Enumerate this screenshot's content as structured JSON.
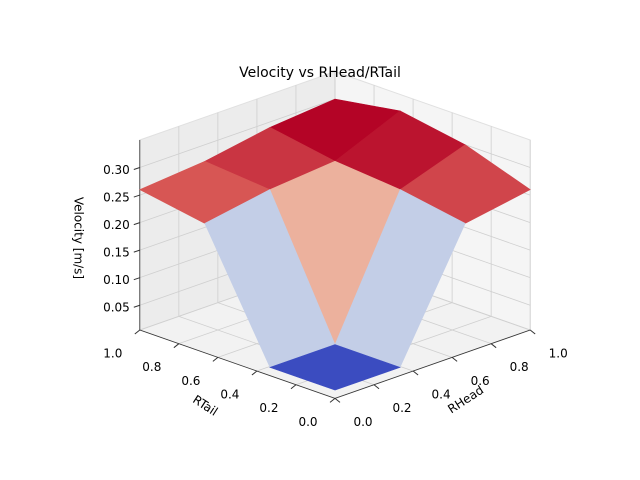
{
  "chart_data": {
    "type": "surface",
    "title": "Velocity vs RHead/RTail",
    "xlabel": "RHead",
    "ylabel": "RTail",
    "zlabel": "Velocity [m/s]",
    "x": [
      0,
      0.333,
      0.667,
      1
    ],
    "y": [
      0,
      0.333,
      0.667,
      1
    ],
    "z": [
      [
        0.02,
        0.02,
        0.24,
        0.26
      ],
      [
        0.02,
        0.02,
        0.26,
        0.3
      ],
      [
        0.24,
        0.26,
        0.27,
        0.32
      ],
      [
        0.26,
        0.27,
        0.29,
        0.3
      ]
    ],
    "xlim": [
      0,
      1
    ],
    "ylim": [
      0,
      1
    ],
    "zlim": [
      0.005,
      0.35
    ],
    "xticks": [
      {
        "value": 0,
        "label": "0.0"
      },
      0.2,
      0.4,
      0.6,
      0.8,
      {
        "value": 1,
        "label": "1.0"
      }
    ],
    "yticks": [
      {
        "value": 0,
        "label": "0.0"
      },
      0.2,
      0.4,
      0.6,
      0.8,
      {
        "value": 1,
        "label": "1.0"
      }
    ],
    "zticks": [
      0.05,
      {
        "value": 0.1,
        "label": "0.10"
      },
      0.15,
      {
        "value": 0.2,
        "label": "0.20"
      },
      0.25,
      {
        "value": 0.3,
        "label": "0.30"
      }
    ],
    "colormap": "coolwarm",
    "grid": true
  }
}
